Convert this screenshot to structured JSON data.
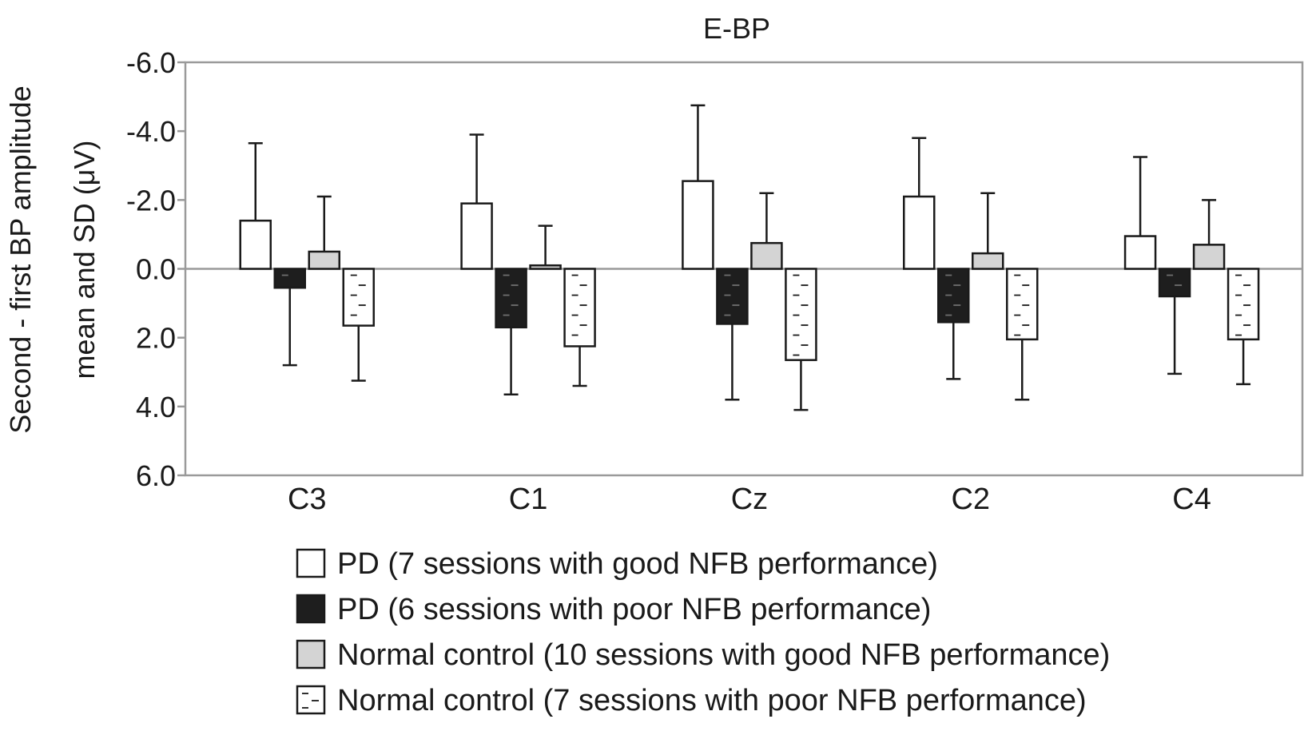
{
  "chart_data": {
    "type": "bar",
    "title": "E-BP",
    "ylabel_line1": "Second - first BP amplitude",
    "ylabel_line2": "mean and SD (μV)",
    "xlabel": "",
    "ylim": [
      -6,
      6
    ],
    "y_inverted": true,
    "yticks": [
      -6,
      -4,
      -2,
      0,
      2,
      4,
      6
    ],
    "ytick_labels": [
      "-6.0",
      "-4.0",
      "-2.0",
      "0.0",
      "2.0",
      "4.0",
      "6.0"
    ],
    "grid": false,
    "legend_position": "bottom",
    "categories": [
      "C3",
      "C1",
      "Cz",
      "C2",
      "C4"
    ],
    "series": [
      {
        "name": "PD (7 sessions with good NFB performance)",
        "pattern": "white",
        "values": [
          -1.4,
          -1.9,
          -2.55,
          -2.1,
          -0.95
        ],
        "sd": [
          2.25,
          2.0,
          2.2,
          1.7,
          2.3
        ]
      },
      {
        "name": "PD (6 sessions with poor NFB performance)",
        "pattern": "black",
        "values": [
          0.55,
          1.7,
          1.6,
          1.55,
          0.8
        ],
        "sd": [
          2.25,
          1.95,
          2.2,
          1.65,
          2.25
        ]
      },
      {
        "name": "Normal control (10 sessions with good NFB performance)",
        "pattern": "gray",
        "values": [
          -0.5,
          -0.1,
          -0.75,
          -0.45,
          -0.7
        ],
        "sd": [
          1.6,
          1.15,
          1.45,
          1.75,
          1.3
        ]
      },
      {
        "name": "Normal control (7 sessions with poor NFB performance)",
        "pattern": "dashed",
        "values": [
          1.65,
          2.25,
          2.65,
          2.05,
          2.05
        ],
        "sd": [
          1.6,
          1.15,
          1.45,
          1.75,
          1.3
        ]
      }
    ]
  },
  "colors": {
    "axis": "#9a9a9a",
    "bar_stroke": "#1a1a1a",
    "white_fill": "#ffffff",
    "black_fill": "#1e1e1e",
    "gray_fill": "#d4d4d4",
    "dash_mark_on_black": "#6e6e6e",
    "dash_mark_on_white": "#1a1a1a"
  }
}
